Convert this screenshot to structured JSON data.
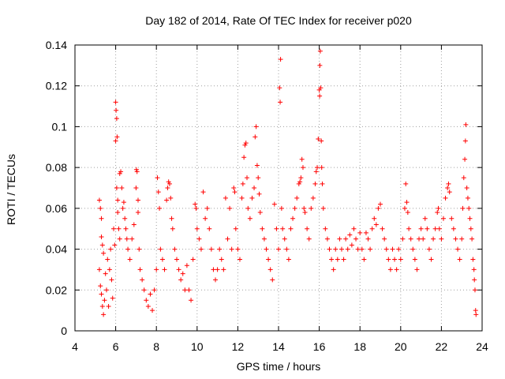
{
  "chart_data": {
    "type": "scatter",
    "title": "Day 182 of 2014, Rate Of TEC Index for receiver p020",
    "xlabel": "GPS time / hours",
    "ylabel": "ROTI / TECUs",
    "xlim": [
      4,
      24
    ],
    "ylim": [
      0,
      0.14
    ],
    "xticks": [
      4,
      6,
      8,
      10,
      12,
      14,
      16,
      18,
      20,
      22,
      24
    ],
    "yticks": [
      0,
      0.02,
      0.04,
      0.06,
      0.08,
      0.1,
      0.12,
      0.14
    ],
    "ytick_labels": [
      "0",
      "0.02",
      "0.04",
      "0.06",
      "0.08",
      "0.1",
      "0.12",
      "0.14"
    ],
    "grid": true,
    "marker": "+",
    "color": "#ff0000",
    "series": [
      {
        "name": "ROTI",
        "points": [
          [
            5.2,
            0.064
          ],
          [
            5.25,
            0.06
          ],
          [
            5.3,
            0.055
          ],
          [
            5.3,
            0.046
          ],
          [
            5.35,
            0.042
          ],
          [
            5.4,
            0.038
          ],
          [
            5.2,
            0.03
          ],
          [
            5.25,
            0.022
          ],
          [
            5.3,
            0.018
          ],
          [
            5.35,
            0.012
          ],
          [
            5.4,
            0.008
          ],
          [
            5.45,
            0.015
          ],
          [
            5.5,
            0.028
          ],
          [
            5.55,
            0.02
          ],
          [
            5.6,
            0.035
          ],
          [
            5.65,
            0.012
          ],
          [
            5.7,
            0.03
          ],
          [
            5.75,
            0.04
          ],
          [
            5.8,
            0.025
          ],
          [
            5.85,
            0.016
          ],
          [
            5.9,
            0.05
          ],
          [
            5.95,
            0.042
          ],
          [
            6.0,
            0.112
          ],
          [
            6.02,
            0.108
          ],
          [
            6.05,
            0.104
          ],
          [
            6.07,
            0.095
          ],
          [
            6.0,
            0.093
          ],
          [
            6.05,
            0.07
          ],
          [
            6.1,
            0.064
          ],
          [
            6.1,
            0.058
          ],
          [
            6.15,
            0.05
          ],
          [
            6.2,
            0.045
          ],
          [
            6.2,
            0.077
          ],
          [
            6.25,
            0.078
          ],
          [
            6.3,
            0.07
          ],
          [
            6.35,
            0.06
          ],
          [
            6.4,
            0.063
          ],
          [
            6.45,
            0.055
          ],
          [
            6.5,
            0.05
          ],
          [
            6.55,
            0.045
          ],
          [
            6.6,
            0.04
          ],
          [
            6.7,
            0.035
          ],
          [
            6.8,
            0.045
          ],
          [
            6.9,
            0.052
          ],
          [
            7.0,
            0.07
          ],
          [
            7.02,
            0.079
          ],
          [
            7.05,
            0.078
          ],
          [
            7.1,
            0.064
          ],
          [
            7.1,
            0.058
          ],
          [
            7.15,
            0.04
          ],
          [
            7.2,
            0.03
          ],
          [
            7.3,
            0.025
          ],
          [
            7.4,
            0.02
          ],
          [
            7.5,
            0.015
          ],
          [
            7.6,
            0.012
          ],
          [
            7.7,
            0.018
          ],
          [
            7.8,
            0.01
          ],
          [
            7.9,
            0.02
          ],
          [
            8.0,
            0.03
          ],
          [
            8.05,
            0.075
          ],
          [
            8.1,
            0.068
          ],
          [
            8.15,
            0.06
          ],
          [
            8.2,
            0.04
          ],
          [
            8.3,
            0.035
          ],
          [
            8.4,
            0.03
          ],
          [
            8.5,
            0.064
          ],
          [
            8.55,
            0.07
          ],
          [
            8.6,
            0.073
          ],
          [
            8.65,
            0.072
          ],
          [
            8.7,
            0.065
          ],
          [
            8.75,
            0.055
          ],
          [
            8.8,
            0.05
          ],
          [
            8.9,
            0.04
          ],
          [
            9.0,
            0.035
          ],
          [
            9.1,
            0.03
          ],
          [
            9.2,
            0.025
          ],
          [
            9.3,
            0.028
          ],
          [
            9.4,
            0.02
          ],
          [
            9.5,
            0.032
          ],
          [
            9.6,
            0.02
          ],
          [
            9.7,
            0.015
          ],
          [
            9.8,
            0.035
          ],
          [
            9.9,
            0.062
          ],
          [
            9.95,
            0.06
          ],
          [
            10.0,
            0.05
          ],
          [
            10.1,
            0.045
          ],
          [
            10.2,
            0.04
          ],
          [
            10.3,
            0.068
          ],
          [
            10.4,
            0.055
          ],
          [
            10.5,
            0.06
          ],
          [
            10.6,
            0.05
          ],
          [
            10.7,
            0.04
          ],
          [
            10.8,
            0.03
          ],
          [
            10.9,
            0.025
          ],
          [
            11.0,
            0.03
          ],
          [
            11.1,
            0.04
          ],
          [
            11.2,
            0.035
          ],
          [
            11.3,
            0.03
          ],
          [
            11.4,
            0.065
          ],
          [
            11.5,
            0.045
          ],
          [
            11.6,
            0.06
          ],
          [
            11.7,
            0.04
          ],
          [
            11.8,
            0.07
          ],
          [
            11.85,
            0.068
          ],
          [
            11.9,
            0.05
          ],
          [
            12.0,
            0.04
          ],
          [
            12.1,
            0.035
          ],
          [
            12.2,
            0.065
          ],
          [
            12.25,
            0.072
          ],
          [
            12.3,
            0.085
          ],
          [
            12.35,
            0.091
          ],
          [
            12.4,
            0.092
          ],
          [
            12.45,
            0.075
          ],
          [
            12.5,
            0.06
          ],
          [
            12.6,
            0.055
          ],
          [
            12.7,
            0.065
          ],
          [
            12.8,
            0.07
          ],
          [
            12.85,
            0.095
          ],
          [
            12.9,
            0.1
          ],
          [
            12.95,
            0.081
          ],
          [
            13.0,
            0.075
          ],
          [
            13.05,
            0.067
          ],
          [
            13.1,
            0.058
          ],
          [
            13.2,
            0.05
          ],
          [
            13.3,
            0.045
          ],
          [
            13.4,
            0.04
          ],
          [
            13.5,
            0.035
          ],
          [
            13.6,
            0.03
          ],
          [
            13.7,
            0.025
          ],
          [
            13.8,
            0.062
          ],
          [
            13.9,
            0.05
          ],
          [
            14.0,
            0.04
          ],
          [
            14.05,
            0.119
          ],
          [
            14.08,
            0.112
          ],
          [
            14.1,
            0.133
          ],
          [
            14.15,
            0.06
          ],
          [
            14.2,
            0.05
          ],
          [
            14.3,
            0.045
          ],
          [
            14.4,
            0.04
          ],
          [
            14.5,
            0.035
          ],
          [
            14.6,
            0.05
          ],
          [
            14.7,
            0.055
          ],
          [
            14.8,
            0.06
          ],
          [
            14.9,
            0.065
          ],
          [
            15.0,
            0.072
          ],
          [
            15.05,
            0.073
          ],
          [
            15.1,
            0.075
          ],
          [
            15.15,
            0.084
          ],
          [
            15.2,
            0.08
          ],
          [
            15.25,
            0.06
          ],
          [
            15.3,
            0.058
          ],
          [
            15.4,
            0.05
          ],
          [
            15.5,
            0.045
          ],
          [
            15.6,
            0.06
          ],
          [
            15.7,
            0.065
          ],
          [
            15.8,
            0.072
          ],
          [
            15.85,
            0.078
          ],
          [
            15.9,
            0.08
          ],
          [
            15.95,
            0.094
          ],
          [
            16.0,
            0.118
          ],
          [
            16.02,
            0.115
          ],
          [
            16.03,
            0.13
          ],
          [
            16.05,
            0.137
          ],
          [
            16.07,
            0.119
          ],
          [
            16.1,
            0.093
          ],
          [
            16.12,
            0.08
          ],
          [
            16.15,
            0.072
          ],
          [
            16.2,
            0.06
          ],
          [
            16.3,
            0.05
          ],
          [
            16.4,
            0.045
          ],
          [
            16.5,
            0.04
          ],
          [
            16.6,
            0.035
          ],
          [
            16.7,
            0.03
          ],
          [
            16.8,
            0.04
          ],
          [
            16.9,
            0.035
          ],
          [
            17.0,
            0.045
          ],
          [
            17.1,
            0.04
          ],
          [
            17.2,
            0.035
          ],
          [
            17.3,
            0.045
          ],
          [
            17.4,
            0.04
          ],
          [
            17.5,
            0.047
          ],
          [
            17.6,
            0.042
          ],
          [
            17.7,
            0.05
          ],
          [
            17.8,
            0.045
          ],
          [
            17.9,
            0.04
          ],
          [
            18.0,
            0.048
          ],
          [
            18.1,
            0.04
          ],
          [
            18.2,
            0.035
          ],
          [
            18.3,
            0.048
          ],
          [
            18.4,
            0.045
          ],
          [
            18.5,
            0.04
          ],
          [
            18.6,
            0.05
          ],
          [
            18.7,
            0.055
          ],
          [
            18.8,
            0.052
          ],
          [
            18.9,
            0.06
          ],
          [
            19.0,
            0.062
          ],
          [
            19.1,
            0.05
          ],
          [
            19.2,
            0.045
          ],
          [
            19.3,
            0.04
          ],
          [
            19.4,
            0.035
          ],
          [
            19.5,
            0.03
          ],
          [
            19.6,
            0.04
          ],
          [
            19.7,
            0.035
          ],
          [
            19.8,
            0.03
          ],
          [
            19.9,
            0.04
          ],
          [
            20.0,
            0.035
          ],
          [
            20.1,
            0.045
          ],
          [
            20.2,
            0.06
          ],
          [
            20.25,
            0.072
          ],
          [
            20.3,
            0.063
          ],
          [
            20.35,
            0.058
          ],
          [
            20.4,
            0.05
          ],
          [
            20.5,
            0.045
          ],
          [
            20.6,
            0.04
          ],
          [
            20.7,
            0.035
          ],
          [
            20.8,
            0.03
          ],
          [
            20.9,
            0.045
          ],
          [
            21.0,
            0.05
          ],
          [
            21.1,
            0.045
          ],
          [
            21.2,
            0.055
          ],
          [
            21.3,
            0.05
          ],
          [
            21.4,
            0.04
          ],
          [
            21.5,
            0.035
          ],
          [
            21.6,
            0.045
          ],
          [
            21.7,
            0.05
          ],
          [
            21.8,
            0.058
          ],
          [
            21.85,
            0.06
          ],
          [
            21.9,
            0.05
          ],
          [
            22.0,
            0.045
          ],
          [
            22.1,
            0.055
          ],
          [
            22.2,
            0.065
          ],
          [
            22.3,
            0.07
          ],
          [
            22.35,
            0.072
          ],
          [
            22.4,
            0.068
          ],
          [
            22.5,
            0.055
          ],
          [
            22.6,
            0.05
          ],
          [
            22.7,
            0.045
          ],
          [
            22.8,
            0.04
          ],
          [
            22.9,
            0.035
          ],
          [
            23.0,
            0.045
          ],
          [
            23.05,
            0.06
          ],
          [
            23.1,
            0.075
          ],
          [
            23.15,
            0.084
          ],
          [
            23.18,
            0.093
          ],
          [
            23.2,
            0.101
          ],
          [
            23.25,
            0.07
          ],
          [
            23.3,
            0.065
          ],
          [
            23.35,
            0.06
          ],
          [
            23.4,
            0.055
          ],
          [
            23.45,
            0.05
          ],
          [
            23.5,
            0.045
          ],
          [
            23.55,
            0.035
          ],
          [
            23.6,
            0.03
          ],
          [
            23.62,
            0.025
          ],
          [
            23.65,
            0.02
          ],
          [
            23.68,
            0.01
          ],
          [
            23.7,
            0.008
          ]
        ]
      }
    ]
  }
}
